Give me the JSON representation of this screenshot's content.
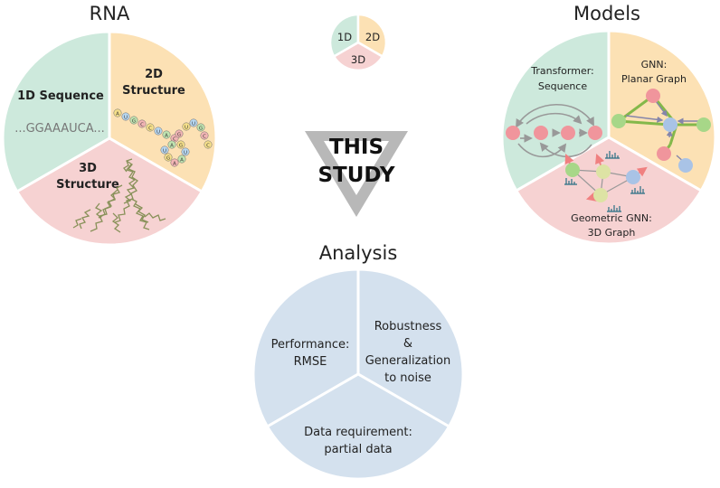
{
  "rna": {
    "title": "RNA",
    "slice_1d": {
      "label": "1D Sequence",
      "sequence": "...GGAAAUCA..."
    },
    "slice_2d": {
      "line1": "2D",
      "line2": "Structure"
    },
    "slice_3d": {
      "line1": "3D",
      "line2": "Structure"
    },
    "hairpin_letters": [
      "A",
      "U",
      "G",
      "C",
      "C",
      "U",
      "A",
      "C",
      "G",
      "U",
      "A",
      "A",
      "G",
      "U",
      "A",
      "G",
      "U",
      "U",
      "G",
      "C",
      "C"
    ]
  },
  "legend": {
    "label_1d": "1D",
    "label_2d": "2D",
    "label_3d": "3D"
  },
  "center": {
    "line1": "THIS",
    "line2": "STUDY"
  },
  "models": {
    "title": "Models",
    "transformer": {
      "line1": "Transformer:",
      "line2": "Sequence"
    },
    "gnn": {
      "line1": "GNN:",
      "line2": "Planar Graph"
    },
    "geometric": {
      "line1": "Geometric GNN:",
      "line2": "3D Graph"
    }
  },
  "analysis": {
    "title": "Analysis",
    "performance": {
      "line1": "Performance:",
      "line2": "RMSE"
    },
    "robustness": {
      "line1": "Robustness",
      "line2": "&",
      "line3": "Generalization",
      "line4": "to noise"
    },
    "data": {
      "line1": "Data requirement:",
      "line2": "partial data"
    }
  },
  "colors": {
    "green": "#cde9dc",
    "orange": "#fce1b4",
    "pink": "#f6d2d2",
    "blue": "#d4e1ee",
    "triangle": "#b8b8b8",
    "node_red": "#f0959c",
    "node_green": "#a7d788",
    "node_yellow": "#dde3a4",
    "node_blue": "#a9c3e6",
    "edge_green": "#84b84a",
    "edge_purple": "#8585aa"
  }
}
